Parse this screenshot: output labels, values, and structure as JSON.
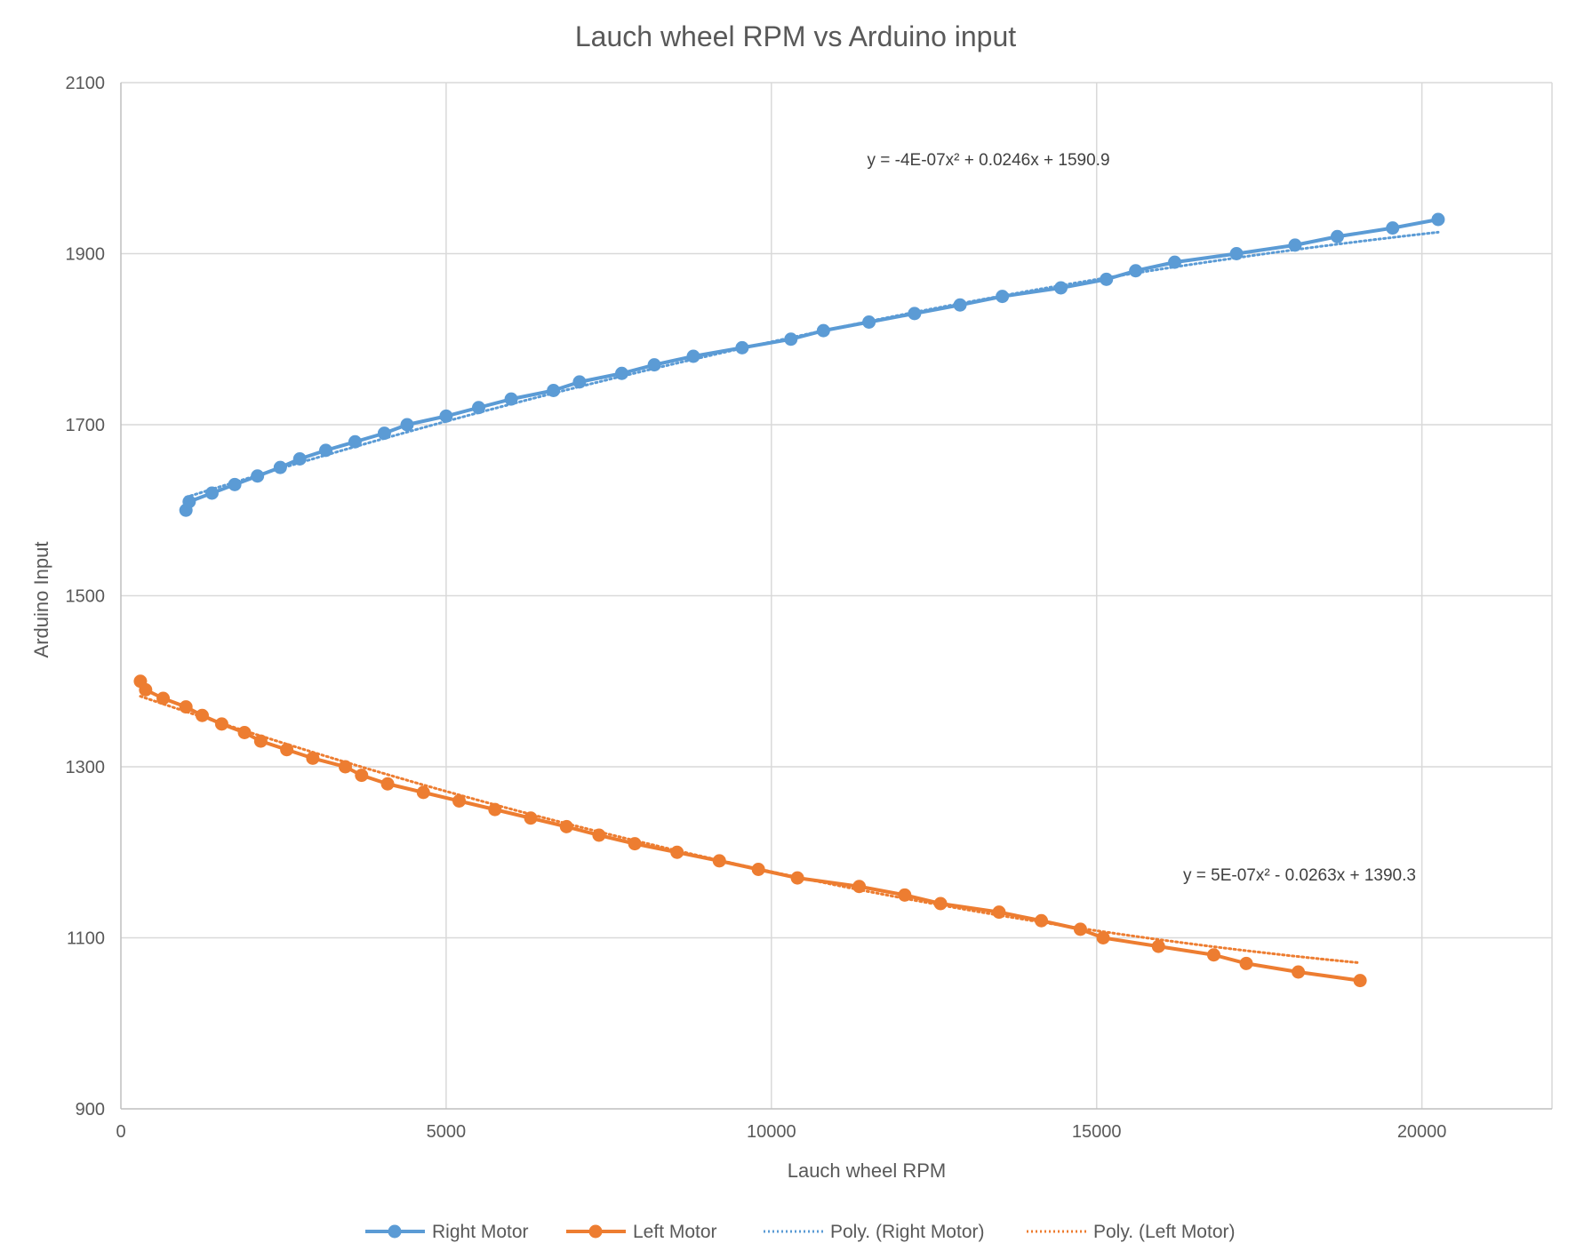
{
  "chart_data": {
    "type": "line",
    "title": "Lauch wheel RPM vs Arduino input",
    "xlabel": "Lauch wheel RPM",
    "ylabel": "Arduino Input",
    "xlim": [
      0,
      22000
    ],
    "ylim": [
      900,
      2100
    ],
    "x_ticks": [
      0,
      5000,
      10000,
      15000,
      20000
    ],
    "y_ticks": [
      900,
      1100,
      1300,
      1500,
      1700,
      1900,
      2100
    ],
    "x_tick_labels": [
      "0",
      "5000",
      "10000",
      "15000",
      "20000"
    ],
    "y_tick_labels": [
      "900",
      "1100",
      "1300",
      "1500",
      "1700",
      "1900",
      "2100"
    ],
    "grid": true,
    "legend_position": "bottom",
    "series": [
      {
        "name": "Right Motor",
        "color": "#5B9BD5",
        "marker": "circle",
        "x": [
          1000,
          1050,
          1400,
          1750,
          2100,
          2450,
          2750,
          3150,
          3600,
          4050,
          4400,
          5000,
          5500,
          6000,
          6650,
          7050,
          7700,
          8200,
          8800,
          9550,
          10300,
          10800,
          11500,
          12200,
          12900,
          13550,
          14450,
          15150,
          15600,
          16200,
          17150,
          18050,
          18700,
          19550,
          20250
        ],
        "y": [
          1600,
          1610,
          1620,
          1630,
          1640,
          1650,
          1660,
          1670,
          1680,
          1690,
          1700,
          1710,
          1720,
          1730,
          1740,
          1750,
          1760,
          1770,
          1780,
          1790,
          1800,
          1810,
          1820,
          1830,
          1840,
          1850,
          1860,
          1870,
          1880,
          1890,
          1900,
          1910,
          1920,
          1930,
          1940
        ]
      },
      {
        "name": "Left Motor",
        "color": "#ED7D31",
        "marker": "circle",
        "x": [
          300,
          380,
          650,
          1000,
          1250,
          1550,
          1900,
          2150,
          2550,
          2950,
          3450,
          3700,
          4100,
          4650,
          5200,
          5750,
          6300,
          6850,
          7350,
          7900,
          8550,
          9200,
          9800,
          10400,
          11350,
          12050,
          12600,
          13500,
          14150,
          14750,
          15100,
          15950,
          16800,
          17300,
          18100,
          19050
        ],
        "y": [
          1400,
          1390,
          1380,
          1370,
          1360,
          1350,
          1340,
          1330,
          1320,
          1310,
          1300,
          1290,
          1280,
          1270,
          1260,
          1250,
          1240,
          1230,
          1220,
          1210,
          1200,
          1190,
          1180,
          1170,
          1160,
          1150,
          1140,
          1130,
          1120,
          1110,
          1100,
          1090,
          1080,
          1070,
          1060,
          1050
        ]
      }
    ],
    "trendlines": [
      {
        "name": "Poly. (Right Motor)",
        "color": "#5B9BD5",
        "style": "dotted",
        "coefficients": {
          "a": -4e-07,
          "b": 0.0246,
          "c": 1590.9
        },
        "x_range": [
          1000,
          20250
        ],
        "equation": "y = -4E-07x² + 0.0246x + 1590.9"
      },
      {
        "name": "Poly. (Left Motor)",
        "color": "#ED7D31",
        "style": "dotted",
        "coefficients": {
          "a": 5e-07,
          "b": -0.0263,
          "c": 1390.3
        },
        "x_range": [
          300,
          19050
        ],
        "equation": "y = 5E-07x² - 0.0263x + 1390.3"
      }
    ]
  }
}
